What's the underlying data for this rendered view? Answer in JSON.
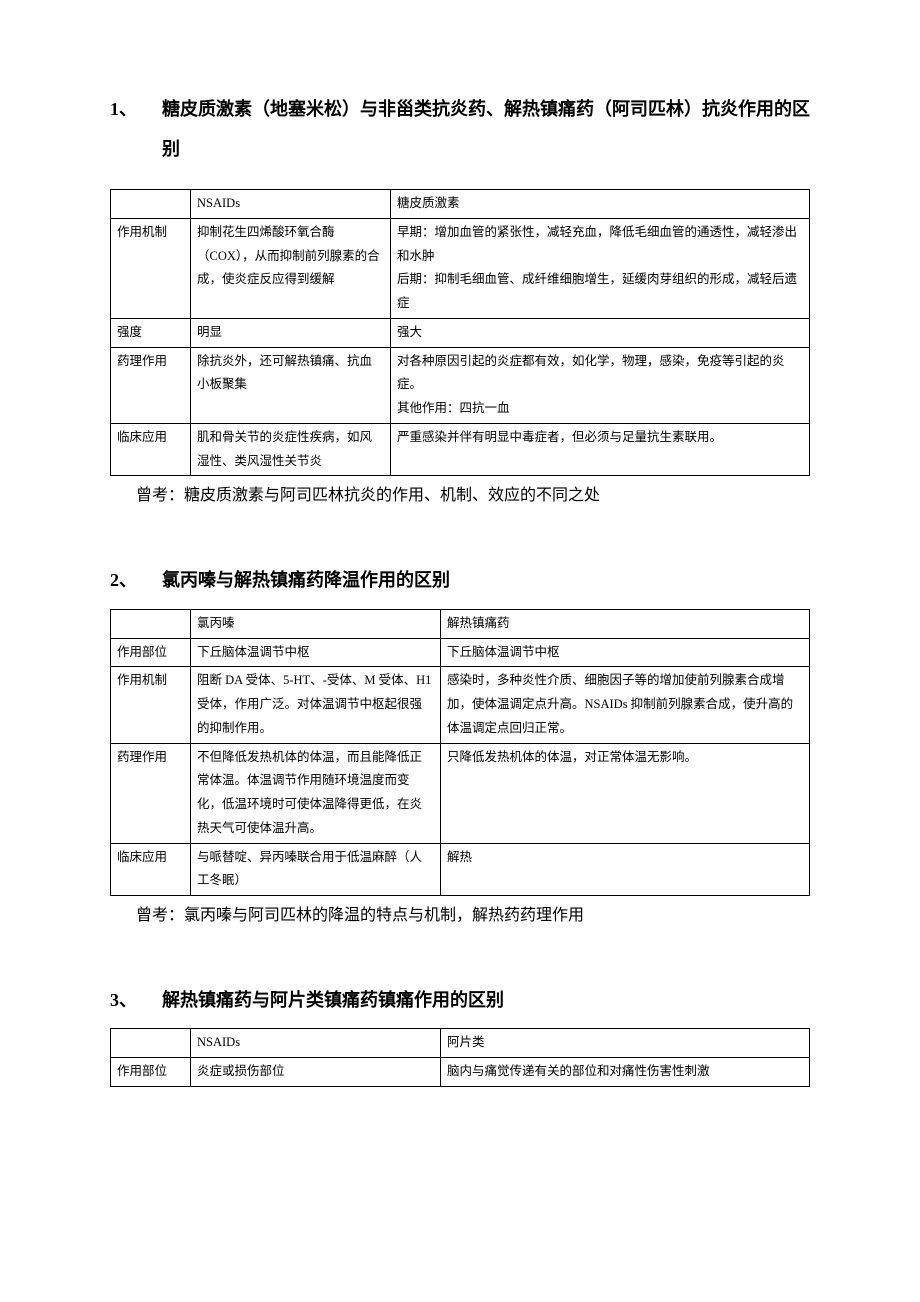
{
  "section1": {
    "num": "1、",
    "title": "糖皮质激素（地塞米松）与非甾类抗炎药、解热镇痛药（阿司匹林）抗炎作用的区别",
    "table": {
      "h1": "",
      "h2": "NSAIDs",
      "h3": "糖皮质激素",
      "r1c1": "作用机制",
      "r1c2": "抑制花生四烯酸环氧合酶（COX），从而抑制前列腺素的合成，使炎症反应得到缓解",
      "r1c3": "早期：增加血管的紧张性，减轻充血，降低毛细血管的通透性，减轻渗出和水肿\n后期：抑制毛细血管、成纤维细胞增生，延缓肉芽组织的形成，减轻后遗症",
      "r2c1": "强度",
      "r2c2": "明显",
      "r2c3": "强大",
      "r3c1": "药理作用",
      "r3c2": "除抗炎外，还可解热镇痛、抗血小板聚集",
      "r3c3": "对各种原因引起的炎症都有效，如化学，物理，感染，免疫等引起的炎症。\n其他作用：四抗一血",
      "r4c1": "临床应用",
      "r4c2": "肌和骨关节的炎症性疾病，如风湿性、类风湿性关节炎",
      "r4c3": "严重感染并伴有明显中毒症者，但必须与足量抗生素联用。"
    },
    "note": "曾考：糖皮质激素与阿司匹林抗炎的作用、机制、效应的不同之处"
  },
  "section2": {
    "num": "2、",
    "title": "氯丙嗪与解热镇痛药降温作用的区别",
    "table": {
      "h1": "",
      "h2": "氯丙嗪",
      "h3": "解热镇痛药",
      "r1c1": "作用部位",
      "r1c2": "下丘脑体温调节中枢",
      "r1c3": "下丘脑体温调节中枢",
      "r2c1": "作用机制",
      "r2c2": "阻断 DA 受体、5-HT、-受体、M 受体、H1 受体，作用广泛。对体温调节中枢起很强的抑制作用。",
      "r2c3": "感染时，多种炎性介质、细胞因子等的增加使前列腺素合成增加，使体温调定点升高。NSAIDs 抑制前列腺素合成，使升高的体温调定点回归正常。",
      "r3c1": "药理作用",
      "r3c2": "不但降低发热机体的体温，而且能降低正常体温。体温调节作用随环境温度而变化，低温环境时可使体温降得更低，在炎热天气可使体温升高。",
      "r3c3": "只降低发热机体的体温，对正常体温无影响。",
      "r4c1": "临床应用",
      "r4c2": "与哌替啶、异丙嗪联合用于低温麻醉（人工冬眠）",
      "r4c3": "解热"
    },
    "note": "曾考：氯丙嗪与阿司匹林的降温的特点与机制，解热药药理作用"
  },
  "section3": {
    "num": "3、",
    "title": "解热镇痛药与阿片类镇痛药镇痛作用的区别",
    "table": {
      "h1": "",
      "h2": "NSAIDs",
      "h3": "阿片类",
      "r1c1": "作用部位",
      "r1c2": "炎症或损伤部位",
      "r1c3": "脑内与痛觉传递有关的部位和对痛性伤害性刺激"
    }
  }
}
